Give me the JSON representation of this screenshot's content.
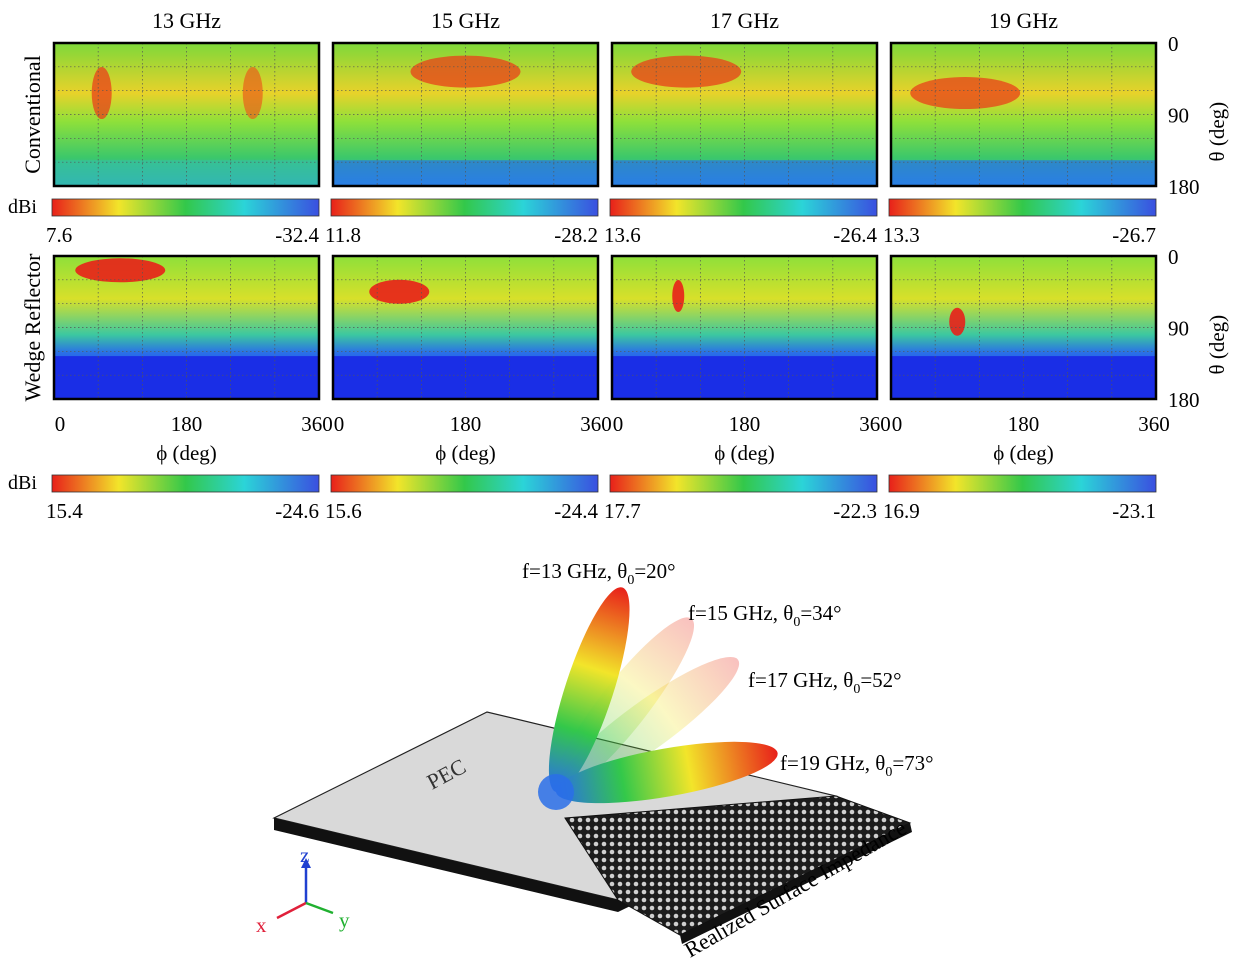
{
  "panels": {
    "frequencies": [
      "13 GHz",
      "15 GHz",
      "17 GHz",
      "19 GHz"
    ],
    "row_labels": [
      "Conventional",
      "Wedge Reflector"
    ],
    "theta_axis_label": "θ (deg)",
    "theta_ticks": [
      "0",
      "90",
      "180"
    ],
    "phi_axis_label": "ϕ (deg)",
    "phi_ticks": [
      "0",
      "180",
      "360"
    ],
    "colorbar_unit": "dBi",
    "colorbars": {
      "conventional": [
        {
          "max": "7.6",
          "min": "-32.4"
        },
        {
          "max": "11.8",
          "min": "-28.2"
        },
        {
          "max": "13.6",
          "min": "-26.4"
        },
        {
          "max": "13.3",
          "min": "-26.7"
        }
      ],
      "wedge": [
        {
          "max": "15.4",
          "min": "-24.6"
        },
        {
          "max": "15.6",
          "min": "-24.4"
        },
        {
          "max": "17.7",
          "min": "-22.3"
        },
        {
          "max": "16.9",
          "min": "-23.1"
        }
      ]
    }
  },
  "scene": {
    "plate_label": "PEC",
    "impedance_label": "Realized Surface Impedance",
    "beams": [
      {
        "f": "f=13 GHz, θ",
        "sub": "0",
        "angle": "=20°",
        "theta_deg": 20
      },
      {
        "f": "f=15 GHz, θ",
        "sub": "0",
        "angle": "=34°",
        "theta_deg": 34
      },
      {
        "f": "f=17 GHz, θ",
        "sub": "0",
        "angle": "=52°",
        "theta_deg": 52
      },
      {
        "f": "f=19 GHz, θ",
        "sub": "0",
        "angle": "=73°",
        "theta_deg": 73
      }
    ],
    "axes": {
      "x": "x",
      "y": "y",
      "z": "z"
    }
  },
  "colors": {
    "red": "#e8201a",
    "yellow": "#f2e52a",
    "green": "#33c84a",
    "cyan": "#2bd4d8",
    "blue": "#1a3be6",
    "plate": "#d9d9d9",
    "x_axis": "#e0203a",
    "y_axis": "#20b030",
    "z_axis": "#2040d0"
  }
}
